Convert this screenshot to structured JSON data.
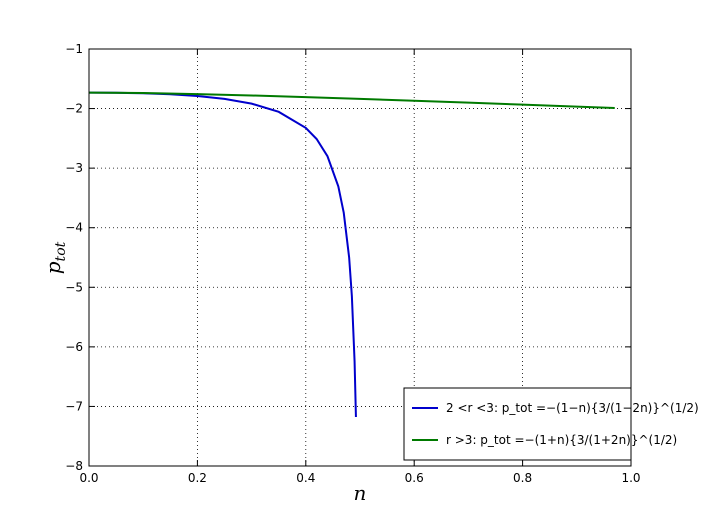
{
  "chart_data": {
    "type": "line",
    "xlabel": "n",
    "ylabel": "p",
    "ylabel_sub": "tot",
    "xlim": [
      0,
      1
    ],
    "ylim": [
      -8,
      -1
    ],
    "xticks": [
      {
        "value": 0,
        "label": "0.0"
      },
      {
        "value": 0.2,
        "label": "0.2"
      },
      {
        "value": 0.4,
        "label": "0.4"
      },
      {
        "value": 0.6,
        "label": "0.6"
      },
      {
        "value": 0.8,
        "label": "0.8"
      },
      {
        "value": 1,
        "label": "1.0"
      }
    ],
    "yticks": [
      {
        "value": -8,
        "label": "−8"
      },
      {
        "value": -7,
        "label": "−7"
      },
      {
        "value": -6,
        "label": "−6"
      },
      {
        "value": -5,
        "label": "−5"
      },
      {
        "value": -4,
        "label": "−4"
      },
      {
        "value": -3,
        "label": "−3"
      },
      {
        "value": -2,
        "label": "−2"
      },
      {
        "value": -1,
        "label": "−1"
      }
    ],
    "grid": true,
    "legend": "lower right",
    "series": [
      {
        "name": "2 <r <3: p_tot =−(1−n){3/(1−2n)}^(1/2)",
        "color": "#0000cc",
        "x": [
          0,
          0.05,
          0.1,
          0.15,
          0.2,
          0.25,
          0.3,
          0.35,
          0.4,
          0.42,
          0.44,
          0.46,
          0.47,
          0.48,
          0.485,
          0.49,
          0.4925
        ],
        "values": [
          -1.732,
          -1.734,
          -1.743,
          -1.76,
          -1.789,
          -1.837,
          -1.917,
          -2.055,
          -2.324,
          -2.511,
          -2.8,
          -3.307,
          -3.748,
          -4.503,
          -5.15,
          -6.246,
          -7.177
        ]
      },
      {
        "name": "r >3: p_tot =−(1+n){3/(1+2n)}^(1/2)",
        "color": "#007a00",
        "x": [
          0,
          0.1,
          0.2,
          0.3,
          0.4,
          0.5,
          0.6,
          0.7,
          0.8,
          0.9,
          0.97
        ],
        "values": [
          -1.732,
          -1.739,
          -1.757,
          -1.78,
          -1.807,
          -1.837,
          -1.868,
          -1.901,
          -1.934,
          -1.967,
          -1.99
        ]
      }
    ]
  }
}
